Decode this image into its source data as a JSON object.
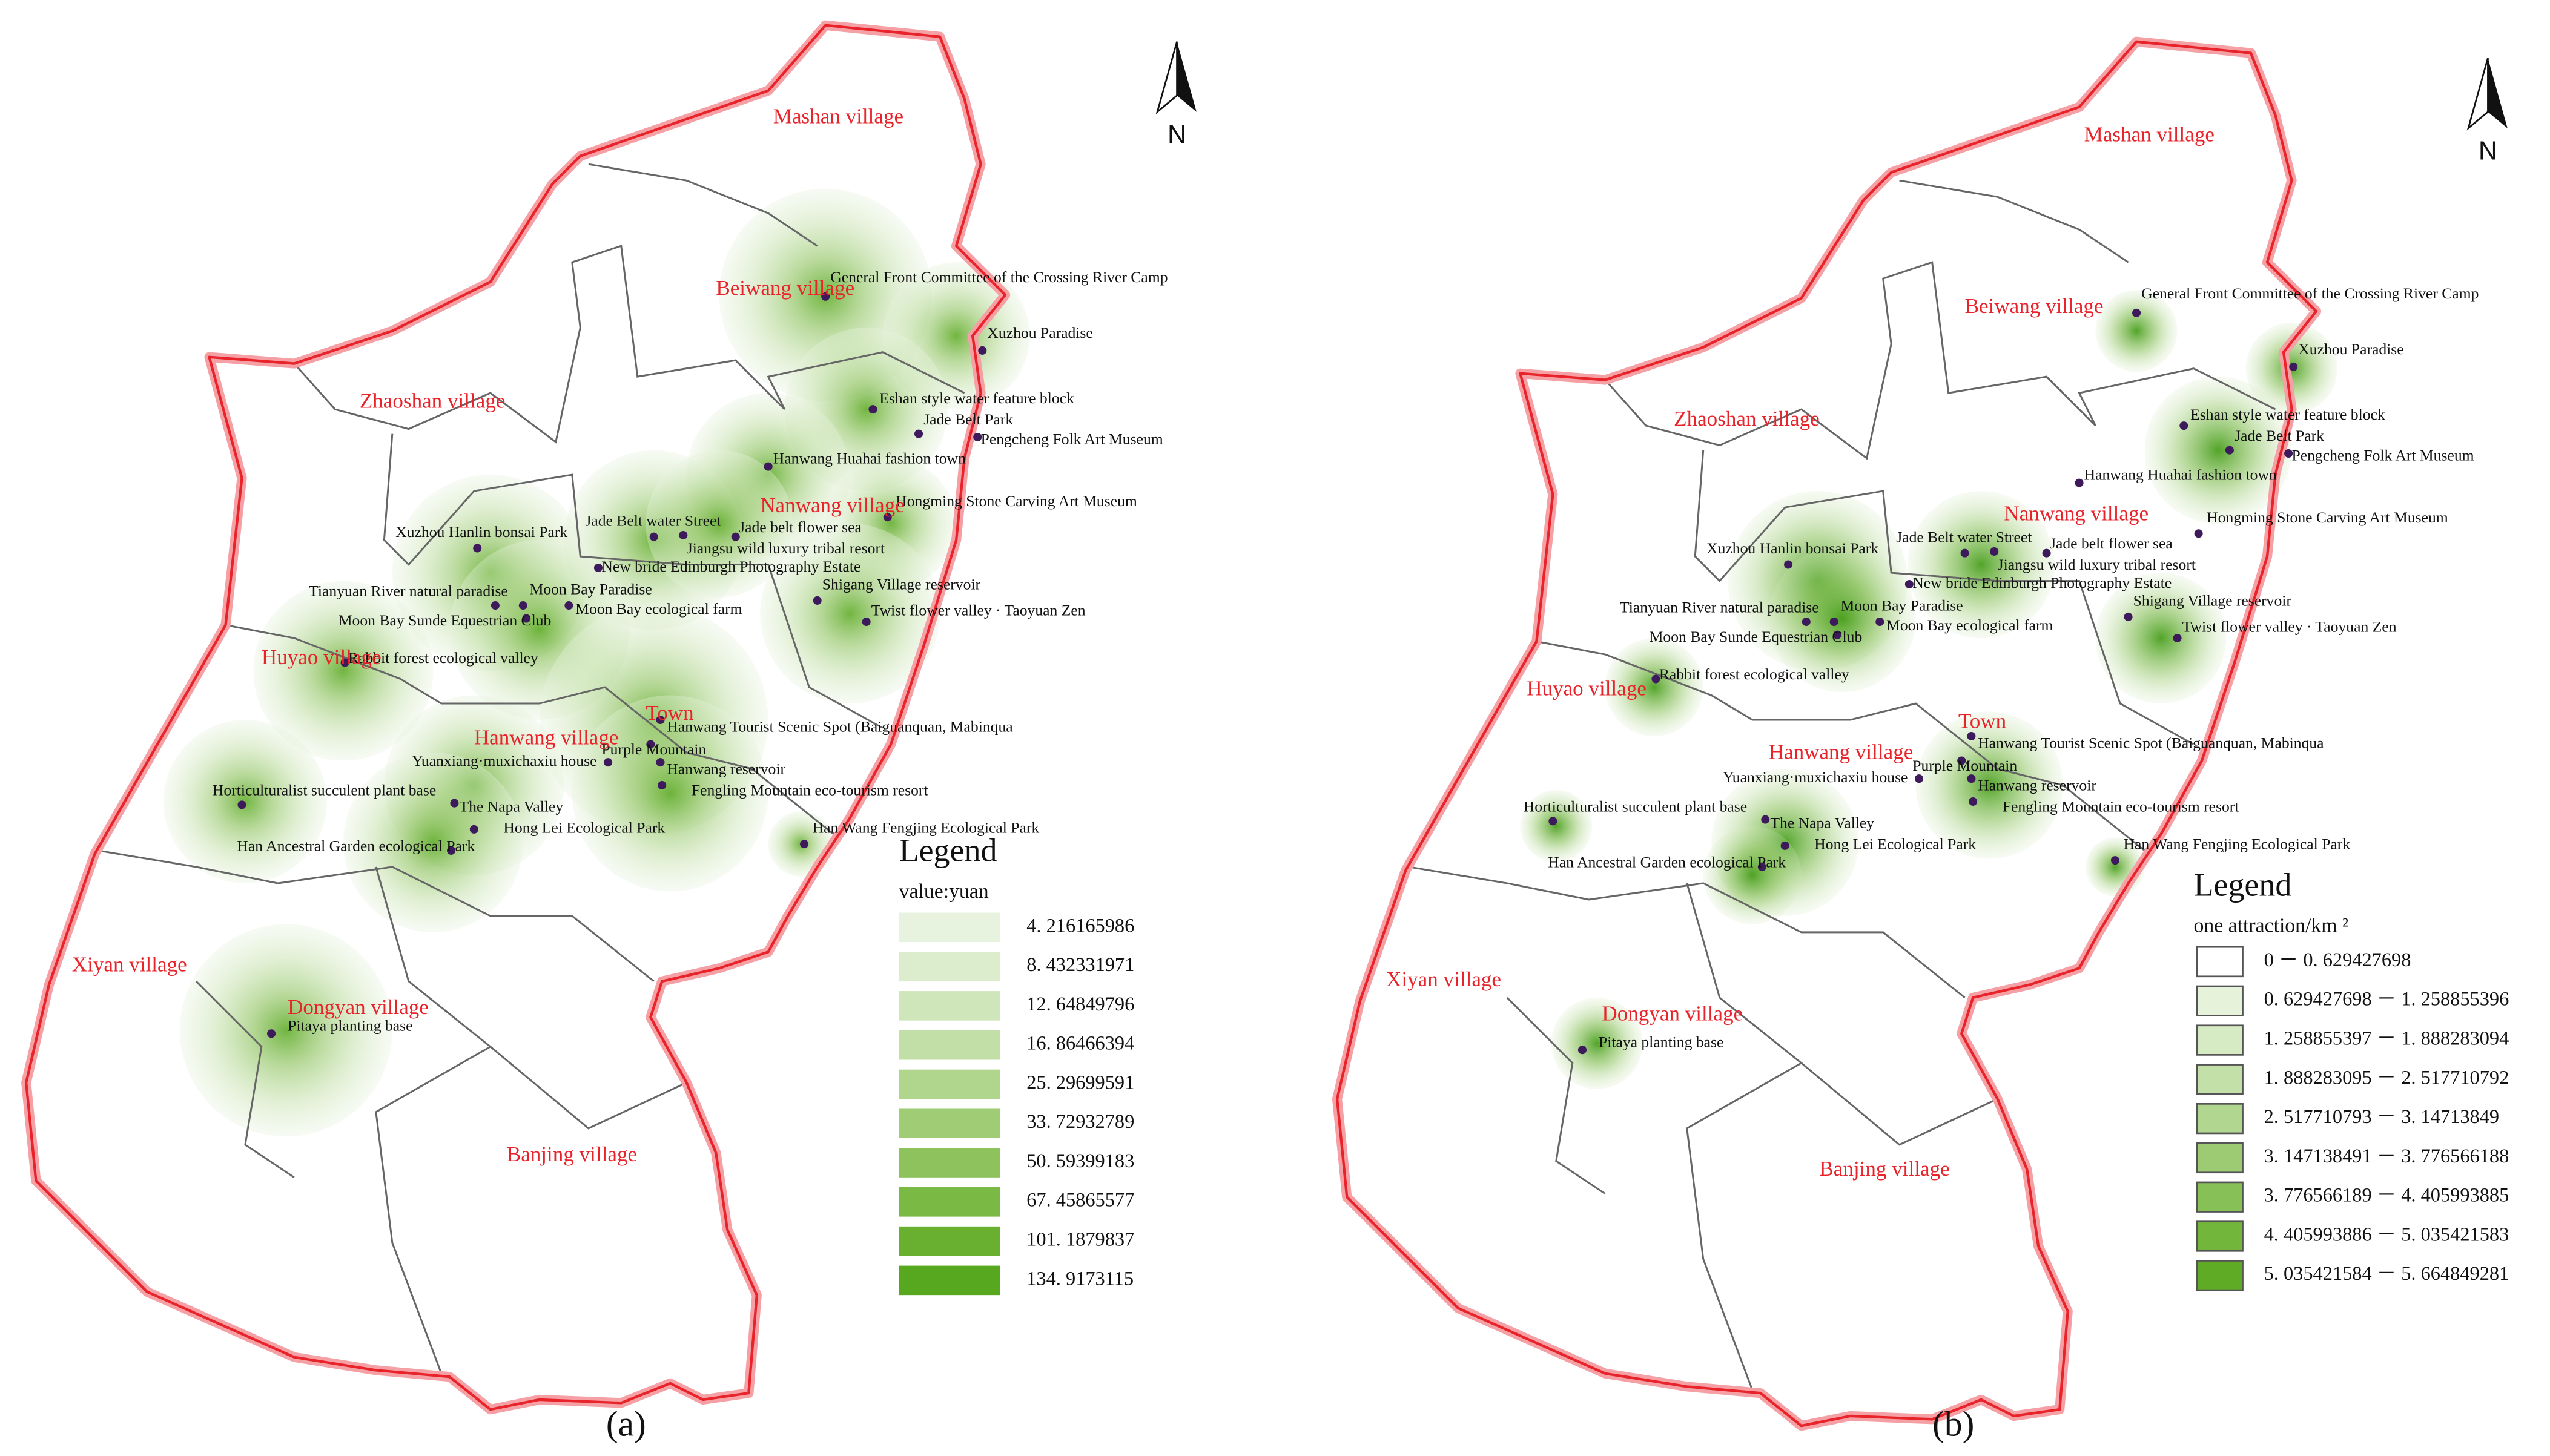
{
  "panels": [
    {
      "villages": [
        "Mashan village",
        "Beiwang village",
        "Zhaoshan village",
        "Nanwang village",
        "Huyao village",
        "Town",
        "Hanwang village",
        "Xiyan village",
        "Dongyan village",
        "Banjing village"
      ],
      "attractions": [
        "General Front Committee of the Crossing River Camp",
        "Xuzhou Paradise",
        "Eshan style water feature block",
        "Jade Belt Park",
        "Pengcheng Folk Art Museum",
        "Hanwang Huahai fashion town",
        "Hongming Stone Carving Art Museum",
        "Jade belt flower sea",
        "Jade Belt water Street",
        "Jiangsu wild luxury tribal resort",
        "New bride Edinburgh Photography Estate",
        "Xuzhou Hanlin bonsai Park",
        "Tianyuan River natural paradise",
        "Moon Bay Paradise",
        "Moon Bay ecological farm",
        "Shigang Village reservoir",
        "Twist flower valley · Taoyuan Zen",
        "Moon Bay Sunde Equestrian Club",
        "Rabbit forest ecological valley",
        "Hanwang Tourist Scenic Spot (Baiguanquan, Mabinqua",
        "Purple Mountain",
        "Yuanxiang·muxichaxiu house",
        "Hanwang reservoir",
        "Fengling Mountain eco-tourism resort",
        "Horticulturalist succulent plant base",
        "The Napa Valley",
        "Hong Lei Ecological Park",
        "Han Ancestral Garden ecological Park",
        "Han Wang Fengjing Ecological Park",
        "Pitaya planting base"
      ],
      "north": "N",
      "legend": {
        "title": "Legend",
        "unit": "value:yuan",
        "items": [
          {
            "label": "4. 216165986",
            "color": "#e8f3df"
          },
          {
            "label": "8. 432331971",
            "color": "#dbedcc"
          },
          {
            "label": "12. 64849796",
            "color": "#cfe6ba"
          },
          {
            "label": "16. 86466394",
            "color": "#c1dfa6"
          },
          {
            "label": "25. 29699591",
            "color": "#b0d58d"
          },
          {
            "label": "33. 72932789",
            "color": "#9fcc75"
          },
          {
            "label": "50. 59399183",
            "color": "#8dc25d"
          },
          {
            "label": "67. 45865577",
            "color": "#7bb945"
          },
          {
            "label": "101. 1879837",
            "color": "#69b031"
          },
          {
            "label": "134. 9173115",
            "color": "#58a81f"
          }
        ]
      },
      "caption": "(a)"
    },
    {
      "villages": [
        "Mashan village",
        "Beiwang village",
        "Zhaoshan village",
        "Nanwang village",
        "Huyao village",
        "Town",
        "Hanwang village",
        "Xiyan village",
        "Dongyan village",
        "Banjing village"
      ],
      "attractions": [
        "General Front Committee of the Crossing River Camp",
        "Xuzhou Paradise",
        "Eshan style water feature block",
        "Jade Belt Park",
        "Pengcheng Folk Art Museum",
        "Hanwang Huahai fashion town",
        "Hongming Stone Carving Art Museum",
        "Jade belt flower sea",
        "Jade Belt water Street",
        "Jiangsu wild luxury tribal resort",
        "New bride Edinburgh Photography Estate",
        "Xuzhou Hanlin bonsai Park",
        "Tianyuan River natural paradise",
        "Moon Bay Paradise",
        "Moon Bay ecological farm",
        "Shigang Village reservoir",
        "Twist flower valley · Taoyuan Zen",
        "Moon Bay Sunde Equestrian Club",
        "Rabbit forest ecological valley",
        "Hanwang Tourist Scenic Spot (Baiguanquan, Mabinqua",
        "Purple Mountain",
        "Yuanxiang·muxichaxiu house",
        "Hanwang reservoir",
        "Fengling Mountain eco-tourism resort",
        "Horticulturalist succulent plant base",
        "The Napa Valley",
        "Hong Lei Ecological Park",
        "Han Ancestral Garden ecological Park",
        "Han Wang Fengjing Ecological Park",
        "Pitaya planting base"
      ],
      "north": "N",
      "legend": {
        "title": "Legend",
        "unit": "one attraction/km ²",
        "items": [
          {
            "label": "0 － 0. 629427698",
            "color": "#ffffff"
          },
          {
            "label": "0. 629427698 － 1. 258855396",
            "color": "#e6f2da"
          },
          {
            "label": "1. 258855397 － 1. 888283094",
            "color": "#d6eac3"
          },
          {
            "label": "1. 888283095 － 2. 517710792",
            "color": "#c4e0a9"
          },
          {
            "label": "2. 517710793 － 3. 14713849",
            "color": "#b1d68f"
          },
          {
            "label": "3. 147138491 － 3. 776566188",
            "color": "#9dcb73"
          },
          {
            "label": "3. 776566189 － 4. 405993885",
            "color": "#88c058"
          },
          {
            "label": "4. 405993886 － 5. 035421583",
            "color": "#72b63c"
          },
          {
            "label": "5. 035421584 － 5. 664849281",
            "color": "#5fab25"
          }
        ]
      },
      "caption": "(b)"
    }
  ]
}
